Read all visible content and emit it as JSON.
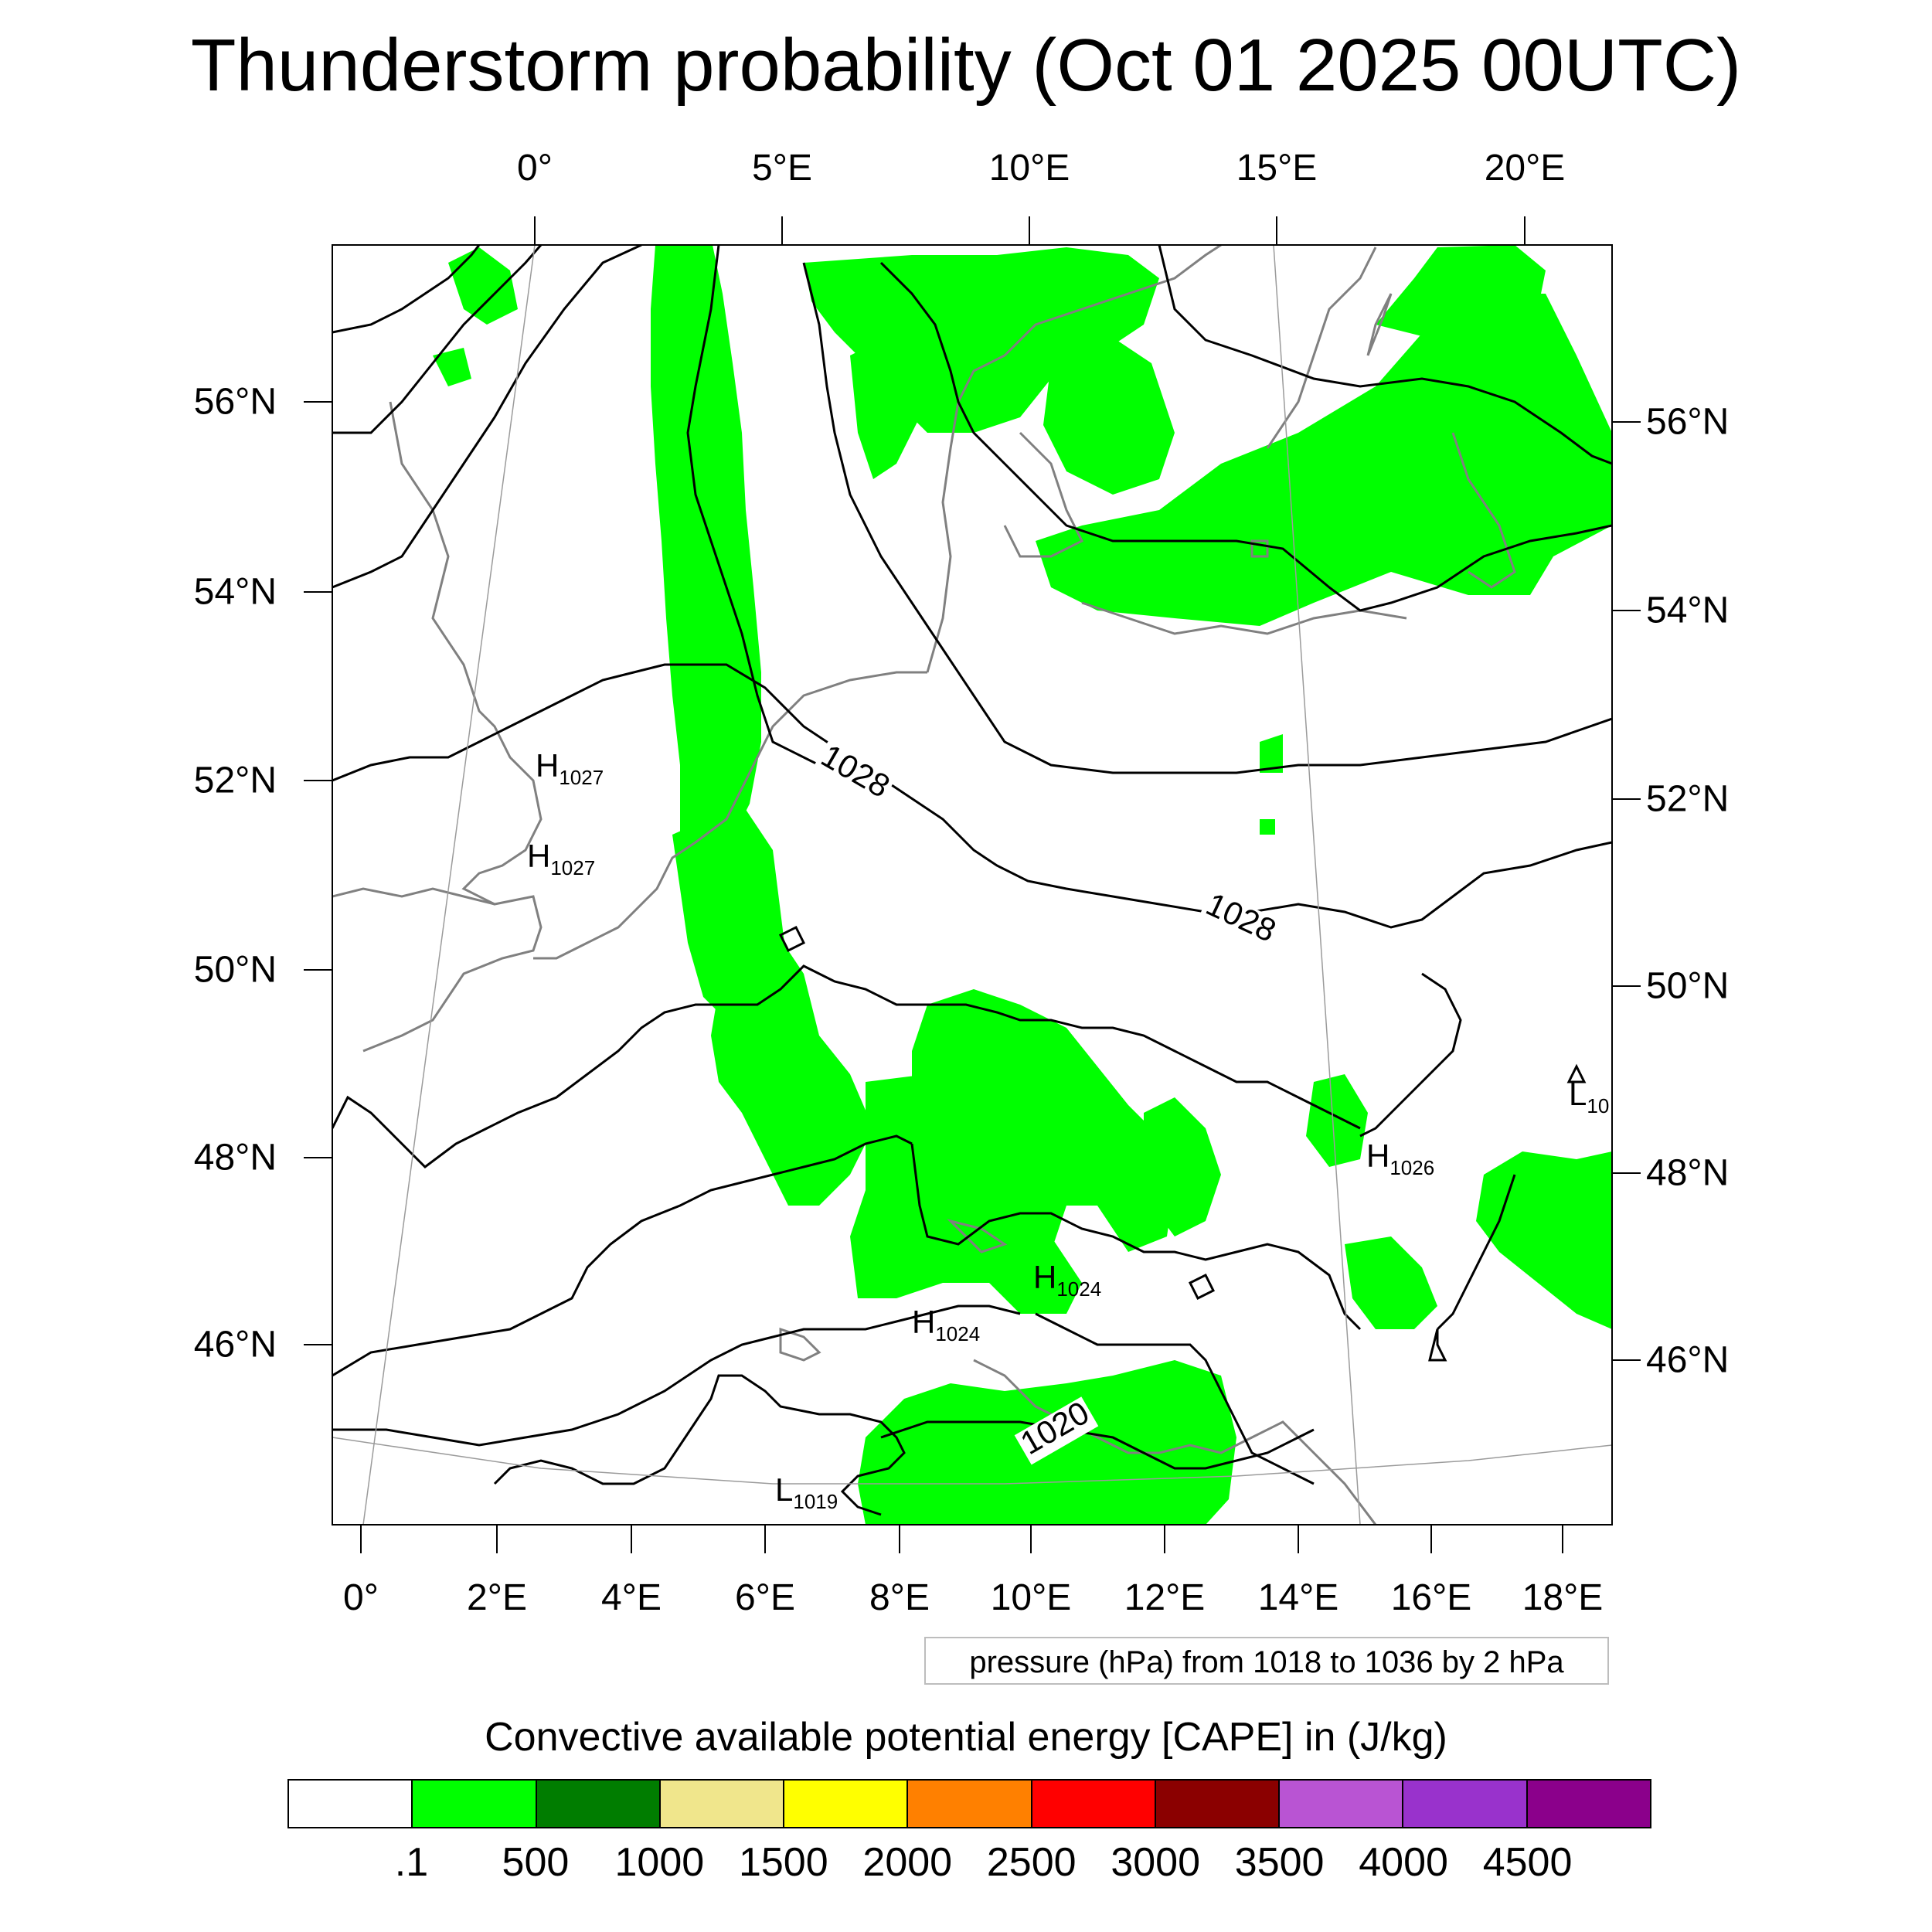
{
  "title": "Thunderstorm probability (Oct 01 2025 00UTC)",
  "axes": {
    "top_lon_labels": [
      "0°",
      "5°E",
      "10°E",
      "15°E",
      "20°E"
    ],
    "bottom_lon_labels": [
      "0°",
      "2°E",
      "4°E",
      "6°E",
      "8°E",
      "10°E",
      "12°E",
      "14°E",
      "16°E",
      "18°E"
    ],
    "left_lat_labels": [
      "56°N",
      "54°N",
      "52°N",
      "50°N",
      "48°N",
      "46°N"
    ],
    "right_lat_labels": [
      "56°N",
      "54°N",
      "52°N",
      "50°N",
      "48°N",
      "46°N"
    ]
  },
  "pressure_note": "pressure (hPa) from 1018 to 1036 by 2 hPa",
  "pressure_centers": [
    {
      "type": "H",
      "value": "1027"
    },
    {
      "type": "H",
      "value": "1027"
    },
    {
      "type": "H",
      "value": "1026"
    },
    {
      "type": "H",
      "value": "1024"
    },
    {
      "type": "H",
      "value": "1024"
    },
    {
      "type": "L",
      "value": "1019"
    },
    {
      "type": "L",
      "value": "10"
    }
  ],
  "contour_labels": [
    "1028",
    "1028",
    "1020"
  ],
  "colorbar": {
    "title": "Convective available potential energy [CAPE] in (J/kg)",
    "colors": [
      "#ffffff",
      "#00ff00",
      "#007d00",
      "#f0e68c",
      "#ffff00",
      "#ff8000",
      "#ff0000",
      "#8b0000",
      "#b954d3",
      "#9932cc",
      "#8b008b"
    ],
    "labels": [
      ".1",
      "500",
      "1000",
      "1500",
      "2000",
      "2500",
      "3000",
      "3500",
      "4000",
      "4500"
    ]
  },
  "colors": {
    "cape_fill": "#00ff00",
    "isobar": "#000000",
    "coastline": "#808080",
    "graticule": "#9b9b9b"
  }
}
